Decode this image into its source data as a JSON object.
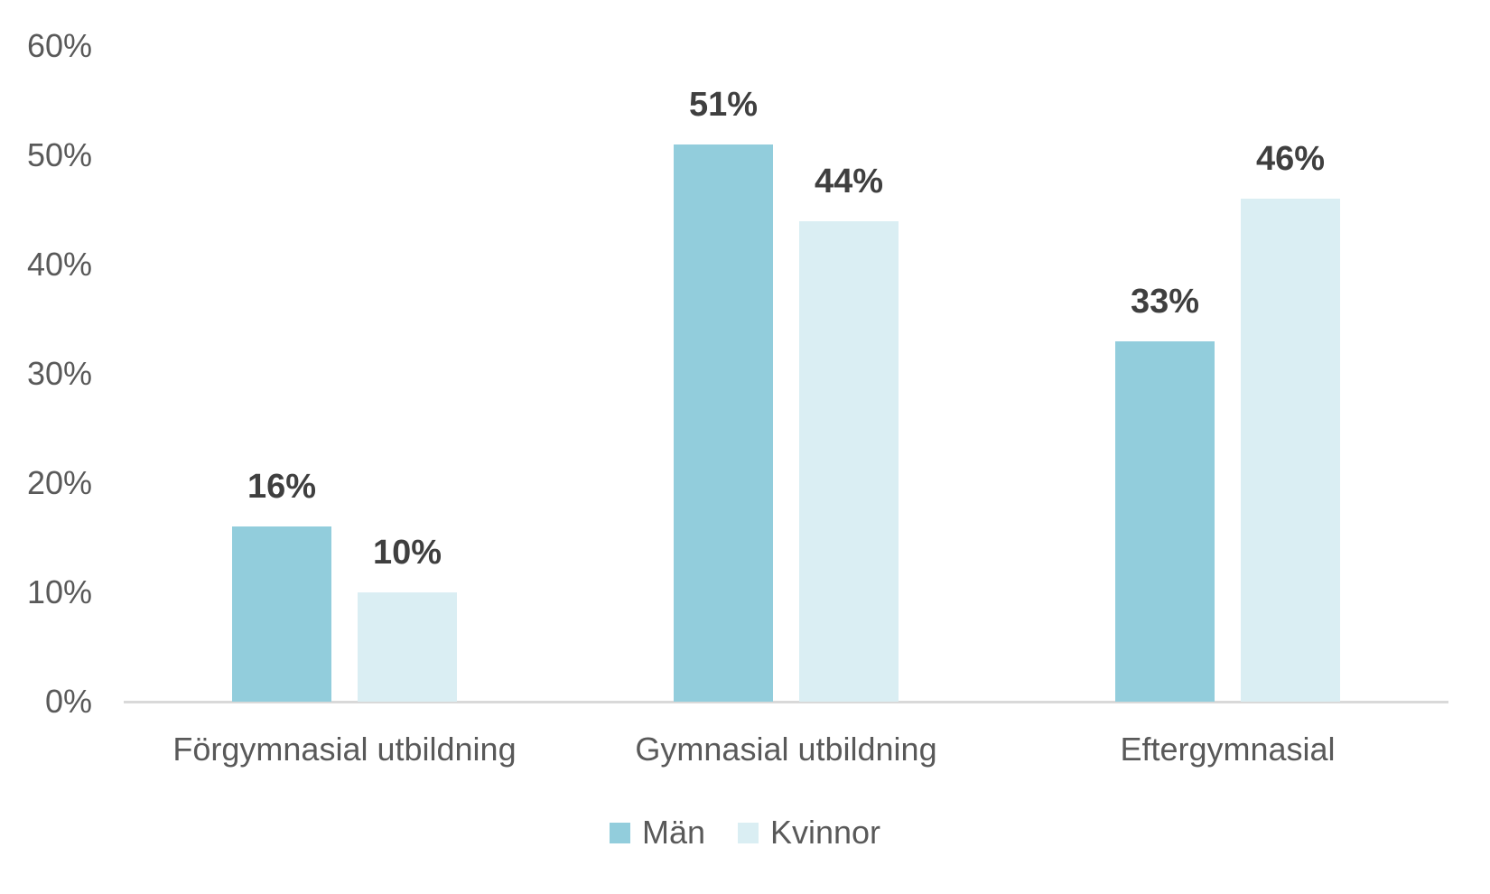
{
  "chart_data": {
    "type": "bar",
    "title": "",
    "categories": [
      "Förgymnasial utbildning",
      "Gymnasial utbildning",
      "Eftergymnasial"
    ],
    "series": [
      {
        "key": "men",
        "name": "Män",
        "color": "#92cddc",
        "values": [
          16,
          51,
          33
        ],
        "labels": [
          "16%",
          "51%",
          "33%"
        ]
      },
      {
        "key": "women",
        "name": "Kvinnor",
        "color": "#daeef3",
        "values": [
          10,
          44,
          46
        ],
        "labels": [
          "10%",
          "44%",
          "46%"
        ]
      }
    ],
    "ylabel": "",
    "xlabel": "",
    "ylim": [
      0,
      60
    ],
    "ytick_values": [
      0,
      10,
      20,
      30,
      40,
      50,
      60
    ],
    "ytick_labels": [
      "0%",
      "10%",
      "20%",
      "30%",
      "40%",
      "50%",
      "60%"
    ],
    "grid": false,
    "legend_position": "bottom",
    "colors": {
      "axis_line": "#d9d9d9",
      "tick_text": "#595959",
      "category_text": "#595959",
      "legend_text": "#595959",
      "data_label_text": "#3f3f3f",
      "background": "#ffffff"
    }
  }
}
